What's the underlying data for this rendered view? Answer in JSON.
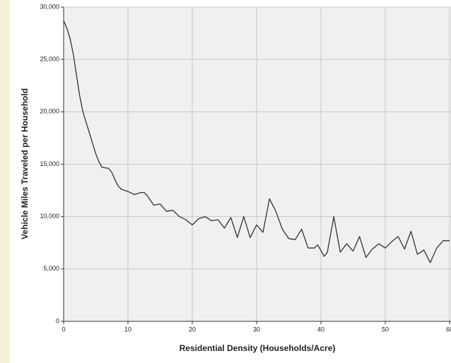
{
  "chart_data": {
    "type": "line",
    "xlabel": "Residential Density (Households/Acre)",
    "ylabel": "Vehicle Miles Traveled per Household",
    "x": [
      0,
      0.5,
      1,
      1.5,
      2,
      2.5,
      3,
      3.5,
      4,
      4.5,
      5,
      5.5,
      6,
      7,
      7.5,
      8,
      8.5,
      9,
      10,
      11,
      12,
      12.5,
      13,
      14,
      15,
      16,
      17,
      18,
      19,
      20,
      21,
      22,
      23,
      24,
      25,
      26,
      27,
      28,
      29,
      30,
      31,
      32,
      33,
      34,
      35,
      36,
      37,
      38,
      39,
      39.5,
      40.5,
      41,
      42,
      43,
      44,
      45,
      46,
      47,
      48,
      49,
      50,
      51,
      52,
      53,
      54,
      55,
      56,
      57,
      58,
      59,
      60
    ],
    "series": [
      {
        "color": "#333333",
        "values": [
          28700,
          28000,
          27000,
          25500,
          23500,
          21500,
          20000,
          19000,
          18000,
          17000,
          16000,
          15200,
          14700,
          14600,
          14200,
          13500,
          12900,
          12600,
          12400,
          12100,
          12300,
          12300,
          12000,
          11100,
          11200,
          10500,
          10600,
          10000,
          9700,
          9200,
          9800,
          10000,
          9600,
          9700,
          8900,
          9900,
          8000,
          10000,
          8000,
          9200,
          8500,
          11700,
          10500,
          8800,
          7900,
          7800,
          8800,
          7000,
          7000,
          7300,
          6200,
          6600,
          10000,
          6600,
          7400,
          6700,
          8100,
          6100,
          6900,
          7400,
          7000,
          7600,
          8100,
          6900,
          8600,
          6400,
          6800,
          5600,
          7000,
          7700,
          7700
        ]
      }
    ],
    "xlim": [
      0,
      60
    ],
    "xticks": [
      0,
      10,
      20,
      30,
      40,
      50,
      60
    ],
    "ylim": [
      0,
      30000
    ],
    "yticks": [
      0,
      {
        "value": 5000,
        "label": "5,000"
      },
      {
        "value": 10000,
        "label": "10,000"
      },
      {
        "value": 15000,
        "label": "15,000"
      },
      {
        "value": 20000,
        "label": "20,000"
      },
      {
        "value": 25000,
        "label": "25,000"
      },
      {
        "value": 30000,
        "label": "30,000"
      }
    ],
    "grid": true
  }
}
